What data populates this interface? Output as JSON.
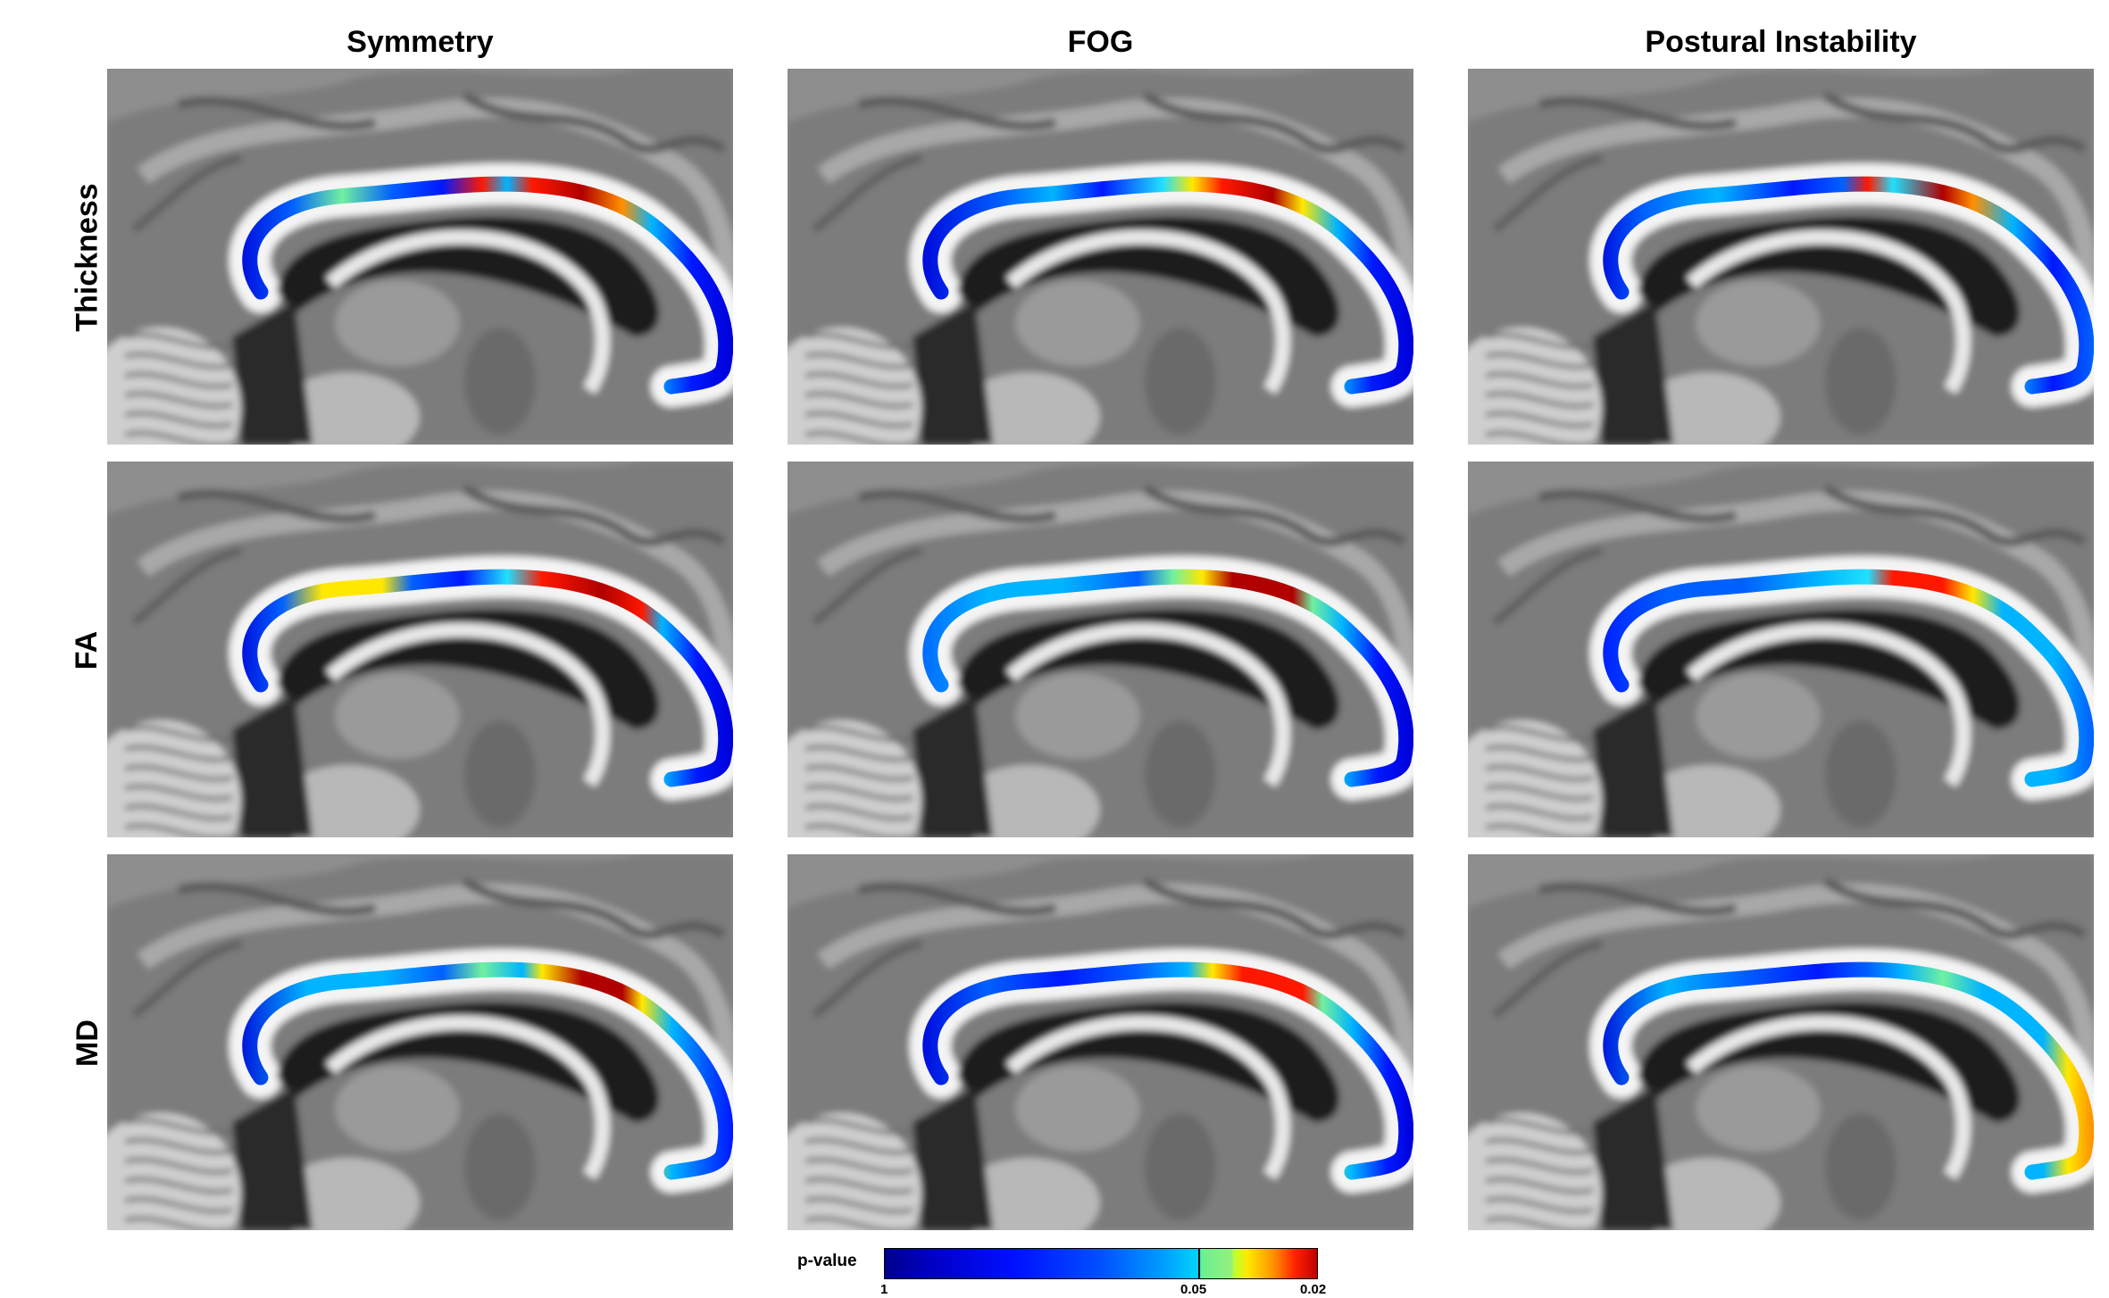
{
  "columns": [
    "Symmetry",
    "FOG",
    "Postural Instability"
  ],
  "rows": [
    "Thickness",
    "FA",
    "MD"
  ],
  "colorbar": {
    "label": "p-value",
    "ticks": [
      "1",
      "0.05",
      "0.02"
    ]
  }
}
